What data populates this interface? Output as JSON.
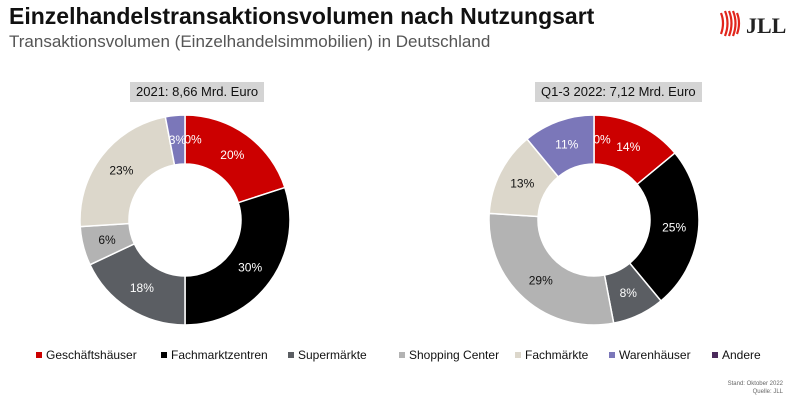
{
  "header": {
    "title": "Einzelhandelstransaktionsvolumen nach Nutzungsart",
    "subtitle": "Transaktionsvolumen (Einzelhandelsimmobilien) in Deutschland",
    "logo_text": "JLL"
  },
  "colors": {
    "Geschäftshäuser": "#cc0000",
    "Fachmarktzentren": "#000000",
    "Supermärkte": "#5b5e63",
    "Shopping Center": "#b3b3b3",
    "Fachmärkte": "#dcd7cb",
    "Warenhäuser": "#7b77b9",
    "Andere": "#4b2b5c",
    "logo_red": "#e1251b"
  },
  "legend": [
    "Geschäftshäuser",
    "Fachmarktzentren",
    "Supermärkte",
    "Shopping Center",
    "Fachmärkte",
    "Warenhäuser",
    "Andere"
  ],
  "chart_data": [
    {
      "type": "pie",
      "donut": true,
      "label": "2021: 8,66 Mrd. Euro",
      "categories": [
        "Geschäftshäuser",
        "Fachmarktzentren",
        "Supermärkte",
        "Shopping Center",
        "Fachmärkte",
        "Warenhäuser",
        "Andere"
      ],
      "values": [
        20,
        30,
        18,
        6,
        23,
        3,
        0
      ],
      "data_labels": [
        "20%",
        "30%",
        "18%",
        "6%",
        "23%",
        "3%",
        "0%"
      ]
    },
    {
      "type": "pie",
      "donut": true,
      "label": "Q1-3 2022: 7,12 Mrd. Euro",
      "categories": [
        "Geschäftshäuser",
        "Fachmarktzentren",
        "Supermärkte",
        "Shopping Center",
        "Fachmärkte",
        "Warenhäuser",
        "Andere"
      ],
      "values": [
        14,
        25,
        8,
        29,
        13,
        11,
        0
      ],
      "data_labels": [
        "14%",
        "25%",
        "8%",
        "29%",
        "13%",
        "11%",
        "0%"
      ]
    }
  ],
  "footer": {
    "line1": "Stand: Oktober 2022",
    "line2": "Quelle: JLL"
  }
}
